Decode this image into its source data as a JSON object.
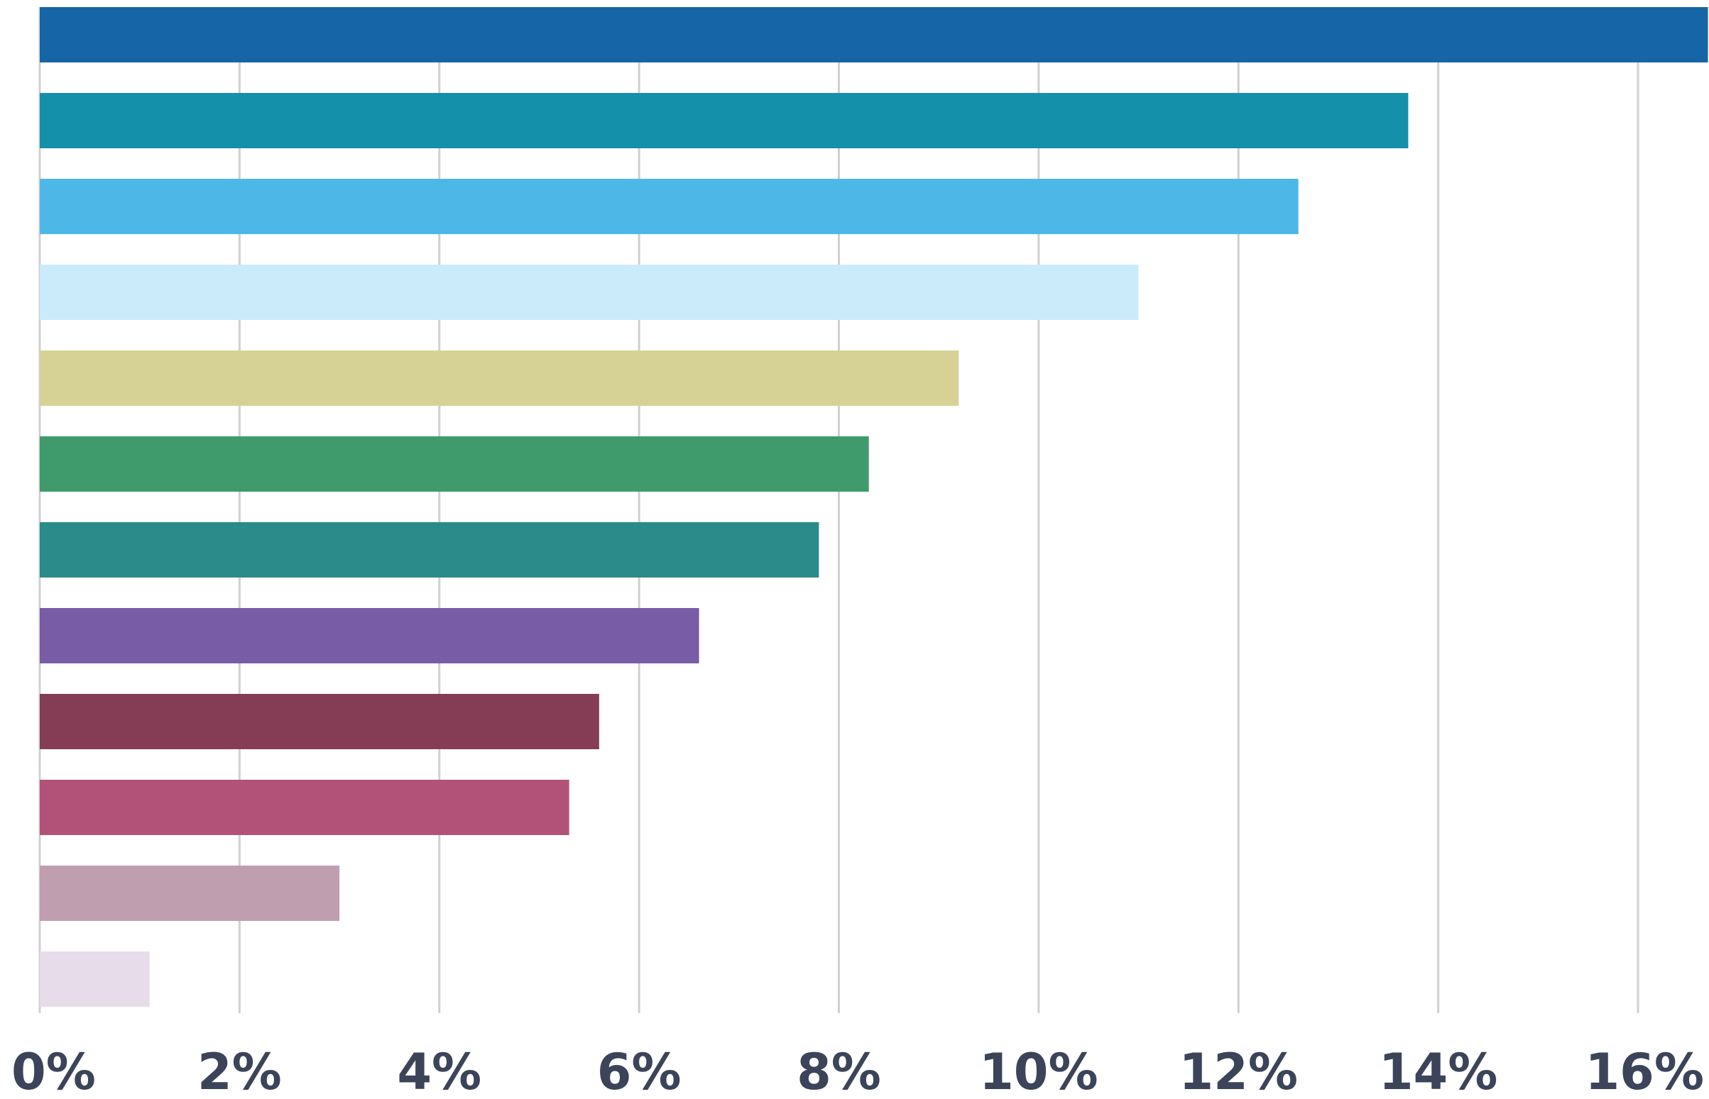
{
  "chart_data": {
    "type": "bar",
    "orientation": "horizontal",
    "title": "",
    "xlabel": "",
    "ylabel": "",
    "xlim": [
      0,
      16
    ],
    "x_ticks": [
      {
        "value": 0,
        "label": "0%"
      },
      {
        "value": 2,
        "label": "2%"
      },
      {
        "value": 4,
        "label": "4%"
      },
      {
        "value": 6,
        "label": "6%"
      },
      {
        "value": 8,
        "label": "8%"
      },
      {
        "value": 10,
        "label": "10%"
      },
      {
        "value": 12,
        "label": "12%"
      },
      {
        "value": 14,
        "label": "14%"
      },
      {
        "value": 16,
        "label": "16%"
      }
    ],
    "grid": true,
    "legend": "none",
    "unit": "%",
    "values": [
      16.7,
      13.7,
      12.6,
      11.0,
      9.2,
      8.3,
      7.8,
      6.6,
      5.6,
      5.3,
      3.0,
      1.1
    ],
    "colors": [
      "#1565a7",
      "#1590aa",
      "#4db8e8",
      "#cbebfb",
      "#d6d295",
      "#3f9b6b",
      "#2b8a8a",
      "#785ca6",
      "#843d55",
      "#b35279",
      "#bf9eb0",
      "#e6dcea"
    ]
  }
}
